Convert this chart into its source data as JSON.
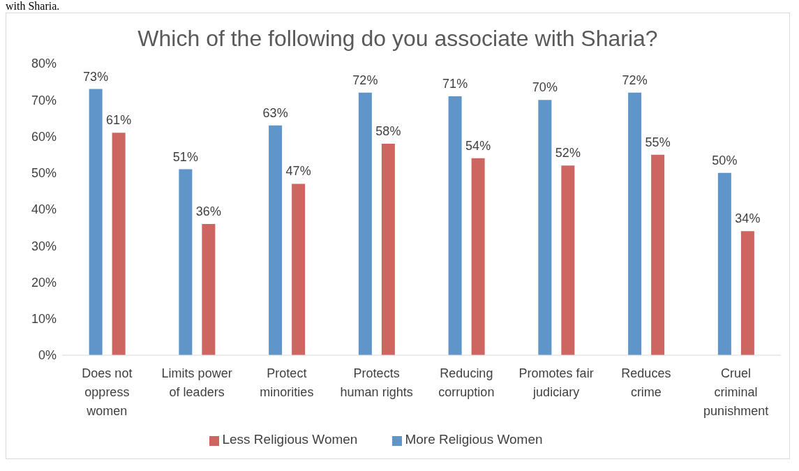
{
  "chart_data": {
    "type": "bar",
    "title": "Which of the following do you associate with Sharia?",
    "annotations": [
      "with Sharia."
    ],
    "categories": [
      "Does not oppress women",
      "Limits power of leaders",
      "Protect minorities",
      "Protects human rights",
      "Reducing corruption",
      "Promotes fair judiciary",
      "Reduces crime",
      "Cruel criminal punishment"
    ],
    "series": [
      {
        "name": "More Religious Women",
        "color": "#5f95c9",
        "values": [
          73,
          51,
          63,
          72,
          71,
          70,
          72,
          50
        ],
        "value_labels": [
          "73%",
          "51%",
          "63%",
          "72%",
          "71%",
          "70%",
          "72%",
          "50%"
        ]
      },
      {
        "name": "Less Religious Women",
        "color": "#cd6560",
        "values": [
          61,
          36,
          47,
          58,
          54,
          52,
          55,
          34
        ],
        "value_labels": [
          "61%",
          "36%",
          "47%",
          "58%",
          "54%",
          "52%",
          "55%",
          "34%"
        ]
      }
    ],
    "ylim": [
      0,
      80
    ],
    "yticks": [
      {
        "value": 0,
        "label": "0%"
      },
      {
        "value": 10,
        "label": "10%"
      },
      {
        "value": 20,
        "label": "20%"
      },
      {
        "value": 30,
        "label": "30%"
      },
      {
        "value": 40,
        "label": "40%"
      },
      {
        "value": 50,
        "label": "50%"
      },
      {
        "value": 60,
        "label": "60%"
      },
      {
        "value": 70,
        "label": "70%"
      },
      {
        "value": 80,
        "label": "80%"
      }
    ],
    "grid": false,
    "legend": "bottom"
  }
}
